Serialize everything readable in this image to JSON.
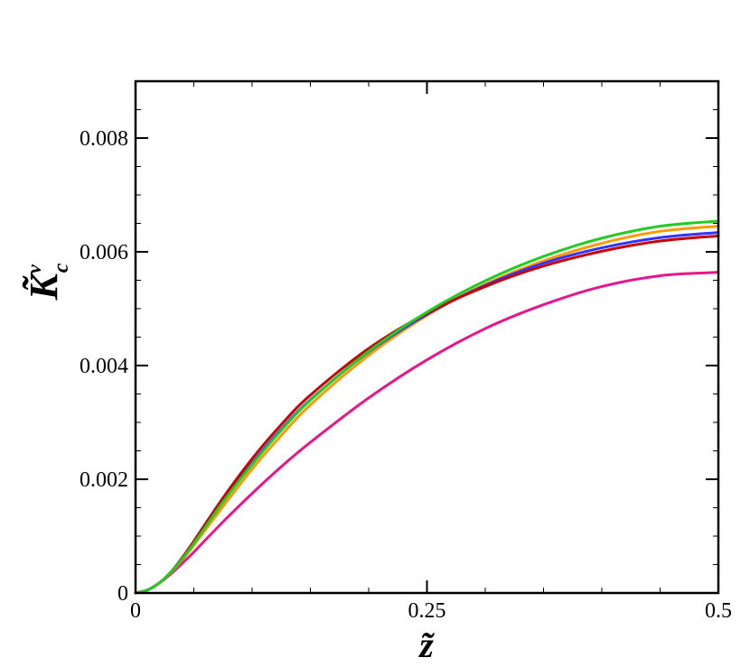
{
  "chart_data": {
    "type": "line",
    "title": "",
    "xlabel": "z̃",
    "ylabel": "K̃",
    "ylabel_superscript": "v",
    "ylabel_subscript": "c",
    "xlim": [
      0,
      0.5
    ],
    "ylim": [
      0,
      0.009
    ],
    "x_ticks": [
      {
        "value": 0,
        "label": "0"
      },
      {
        "value": 0.25,
        "label": "0.25"
      },
      {
        "value": 0.5,
        "label": "0.5"
      }
    ],
    "y_ticks": [
      {
        "value": 0,
        "label": "0"
      },
      {
        "value": 0.002,
        "label": "0.002"
      },
      {
        "value": 0.004,
        "label": "0.004"
      },
      {
        "value": 0.006,
        "label": "0.006"
      },
      {
        "value": 0.008,
        "label": "0.008"
      }
    ],
    "grid": false,
    "legend": "none",
    "series": [
      {
        "color": "#e8168c",
        "x": [
          0,
          0.01,
          0.02,
          0.03,
          0.04,
          0.05,
          0.075,
          0.1,
          0.125,
          0.15,
          0.2,
          0.25,
          0.3,
          0.35,
          0.4,
          0.45,
          0.5
        ],
        "y": [
          0,
          5e-05,
          0.00017,
          0.00033,
          0.00052,
          0.00072,
          0.00125,
          0.00175,
          0.00222,
          0.00265,
          0.00343,
          0.0041,
          0.00465,
          0.00507,
          0.00539,
          0.00558,
          0.00564
        ]
      },
      {
        "color": "#ff9900",
        "x": [
          0,
          0.01,
          0.02,
          0.03,
          0.04,
          0.05,
          0.075,
          0.1,
          0.125,
          0.15,
          0.2,
          0.25,
          0.3,
          0.35,
          0.4,
          0.45,
          0.5
        ],
        "y": [
          0,
          5e-05,
          0.00017,
          0.00035,
          0.00058,
          0.00084,
          0.00152,
          0.00218,
          0.00277,
          0.00331,
          0.00418,
          0.00488,
          0.00543,
          0.00584,
          0.00615,
          0.00636,
          0.00645
        ]
      },
      {
        "color": "#3333ff",
        "x": [
          0,
          0.01,
          0.02,
          0.03,
          0.04,
          0.05,
          0.075,
          0.1,
          0.125,
          0.15,
          0.2,
          0.25,
          0.3,
          0.35,
          0.4,
          0.45,
          0.5
        ],
        "y": [
          0,
          5e-05,
          0.00017,
          0.00036,
          0.0006,
          0.00088,
          0.00161,
          0.00228,
          0.00288,
          0.0034,
          0.00424,
          0.0049,
          0.00541,
          0.0058,
          0.00607,
          0.00625,
          0.00634
        ]
      },
      {
        "color": "#cc0000",
        "x": [
          0,
          0.01,
          0.02,
          0.03,
          0.04,
          0.05,
          0.075,
          0.1,
          0.125,
          0.15,
          0.2,
          0.25,
          0.3,
          0.35,
          0.4,
          0.45,
          0.5
        ],
        "y": [
          0,
          5e-05,
          0.00017,
          0.00036,
          0.00062,
          0.00091,
          0.00167,
          0.00236,
          0.00296,
          0.00348,
          0.0043,
          0.00492,
          0.00539,
          0.00575,
          0.00601,
          0.00619,
          0.00628
        ]
      },
      {
        "color": "#22cc22",
        "x": [
          0,
          0.01,
          0.02,
          0.03,
          0.04,
          0.05,
          0.075,
          0.1,
          0.125,
          0.15,
          0.2,
          0.25,
          0.3,
          0.35,
          0.4,
          0.45,
          0.5
        ],
        "y": [
          0,
          5e-05,
          0.00017,
          0.00036,
          0.0006,
          0.00087,
          0.0016,
          0.00226,
          0.00286,
          0.00339,
          0.00425,
          0.00494,
          0.00549,
          0.00592,
          0.00624,
          0.00645,
          0.00654
        ]
      }
    ]
  }
}
